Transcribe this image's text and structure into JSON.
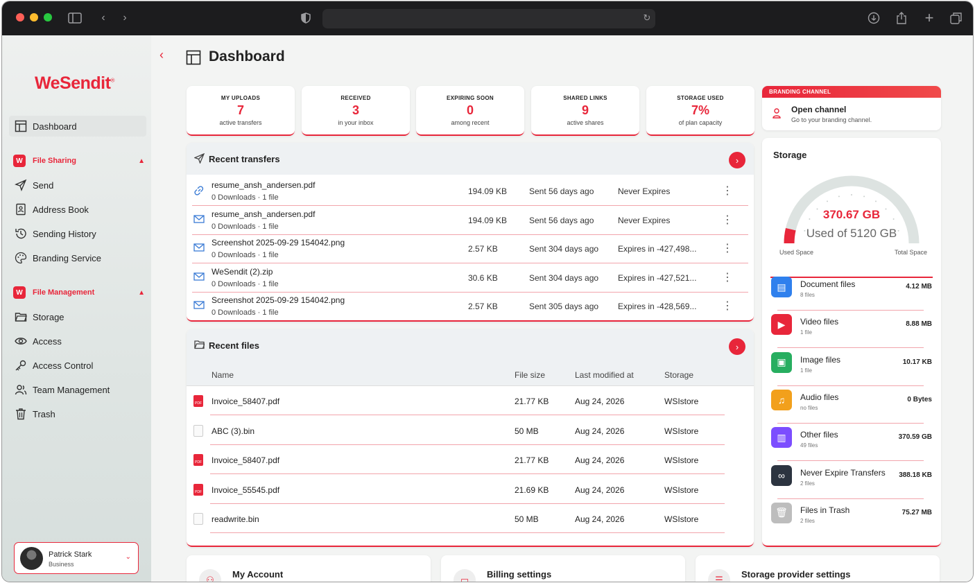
{
  "app": {
    "brand": "WeSendit",
    "brand_mark": "®"
  },
  "colors": {
    "accent": "#e8263a",
    "chrome": "#1c1c1e"
  },
  "sidebar": {
    "items_top": [
      {
        "label": "Dashboard",
        "icon": "layout-icon"
      }
    ],
    "sections": [
      {
        "label": "File Sharing",
        "items": [
          {
            "label": "Send",
            "icon": "send-icon"
          },
          {
            "label": "Address Book",
            "icon": "contact-book-icon"
          },
          {
            "label": "Sending History",
            "icon": "history-icon"
          },
          {
            "label": "Branding Service",
            "icon": "palette-icon"
          }
        ]
      },
      {
        "label": "File Management",
        "items": [
          {
            "label": "Storage",
            "icon": "folder-icon"
          },
          {
            "label": "Access",
            "icon": "eye-icon"
          },
          {
            "label": "Access Control",
            "icon": "key-icon"
          },
          {
            "label": "Team Management",
            "icon": "team-icon"
          },
          {
            "label": "Trash",
            "icon": "trash-icon"
          }
        ]
      }
    ],
    "user": {
      "name": "Patrick Stark",
      "plan": "Business"
    }
  },
  "header": {
    "title": "Dashboard"
  },
  "stats": [
    {
      "label": "MY UPLOADS",
      "value": "7",
      "sub": "active transfers"
    },
    {
      "label": "RECEIVED",
      "value": "3",
      "sub": "in your inbox"
    },
    {
      "label": "EXPIRING SOON",
      "value": "0",
      "sub": "among recent"
    },
    {
      "label": "SHARED LINKS",
      "value": "9",
      "sub": "active shares"
    },
    {
      "label": "STORAGE USED",
      "value": "7%",
      "sub": "of plan capacity"
    }
  ],
  "branding": {
    "banner": "BRANDING CHANNEL",
    "title": "Open channel",
    "sub": "Go to your branding channel."
  },
  "transfers": {
    "title": "Recent transfers",
    "rows": [
      {
        "name": "resume_ansh_andersen.pdf",
        "meta": "0 Downloads · 1 file",
        "size": "194.09 KB",
        "sent": "Sent 56 days ago",
        "expiry": "Never Expires",
        "icon": "link-icon"
      },
      {
        "name": "resume_ansh_andersen.pdf",
        "meta": "0 Downloads · 1 file",
        "size": "194.09 KB",
        "sent": "Sent 56 days ago",
        "expiry": "Never Expires",
        "icon": "mail-icon"
      },
      {
        "name": "Screenshot 2025-09-29 154042.png",
        "meta": "0 Downloads · 1 file",
        "size": "2.57 KB",
        "sent": "Sent 304 days ago",
        "expiry": "Expires in -427,498...",
        "icon": "mail-icon"
      },
      {
        "name": "WeSendit (2).zip",
        "meta": "0 Downloads · 1 file",
        "size": "30.6 KB",
        "sent": "Sent 304 days ago",
        "expiry": "Expires in -427,521...",
        "icon": "mail-icon"
      },
      {
        "name": "Screenshot 2025-09-29 154042.png",
        "meta": "0 Downloads · 1 file",
        "size": "2.57 KB",
        "sent": "Sent 305 days ago",
        "expiry": "Expires in -428,569...",
        "icon": "mail-icon"
      }
    ]
  },
  "files": {
    "title": "Recent files",
    "columns": [
      "Name",
      "File size",
      "Last modified at",
      "Storage"
    ],
    "rows": [
      {
        "name": "Invoice_58407.pdf",
        "size": "21.77 KB",
        "modified": "Aug 24, 2026",
        "storage": "WSIstore",
        "type": "pdf"
      },
      {
        "name": "ABC (3).bin",
        "size": "50 MB",
        "modified": "Aug 24, 2026",
        "storage": "WSIstore",
        "type": "bin"
      },
      {
        "name": "Invoice_58407.pdf",
        "size": "21.77 KB",
        "modified": "Aug 24, 2026",
        "storage": "WSIstore",
        "type": "pdf"
      },
      {
        "name": "Invoice_55545.pdf",
        "size": "21.69 KB",
        "modified": "Aug 24, 2026",
        "storage": "WSIstore",
        "type": "pdf"
      },
      {
        "name": "readwrite.bin",
        "size": "50 MB",
        "modified": "Aug 24, 2026",
        "storage": "WSIstore",
        "type": "bin"
      }
    ]
  },
  "storage": {
    "title": "Storage",
    "used": "370.67 GB",
    "total_text": "Used of 5120 GB",
    "used_fraction": 0.0724,
    "used_label": "Used Space",
    "total_label": "Total Space",
    "categories": [
      {
        "name": "Document files",
        "files": "8 files",
        "size": "4.12 MB",
        "color": "#2f80ed",
        "icon": "document-icon"
      },
      {
        "name": "Video files",
        "files": "1 file",
        "size": "8.88 MB",
        "color": "#e8263a",
        "icon": "play-icon"
      },
      {
        "name": "Image files",
        "files": "1 file",
        "size": "10.17 KB",
        "color": "#27ae60",
        "icon": "image-icon"
      },
      {
        "name": "Audio files",
        "files": "no files",
        "size": "0 Bytes",
        "color": "#f2a01c",
        "icon": "music-icon"
      },
      {
        "name": "Other files",
        "files": "49 files",
        "size": "370.59 GB",
        "color": "#7c4dff",
        "icon": "archive-icon"
      },
      {
        "name": "Never Expire Transfers",
        "files": "2 files",
        "size": "388.18 KB",
        "color": "#2c3440",
        "icon": "infinity-icon"
      },
      {
        "name": "Files in Trash",
        "files": "2 files",
        "size": "75.27 MB",
        "color": "#bdbdbd",
        "icon": "trash-icon"
      }
    ]
  },
  "bottom_cards": [
    {
      "title": "My Account",
      "icon": "user-icon"
    },
    {
      "title": "Billing settings",
      "icon": "card-icon"
    },
    {
      "title": "Storage provider settings",
      "icon": "server-icon"
    }
  ]
}
